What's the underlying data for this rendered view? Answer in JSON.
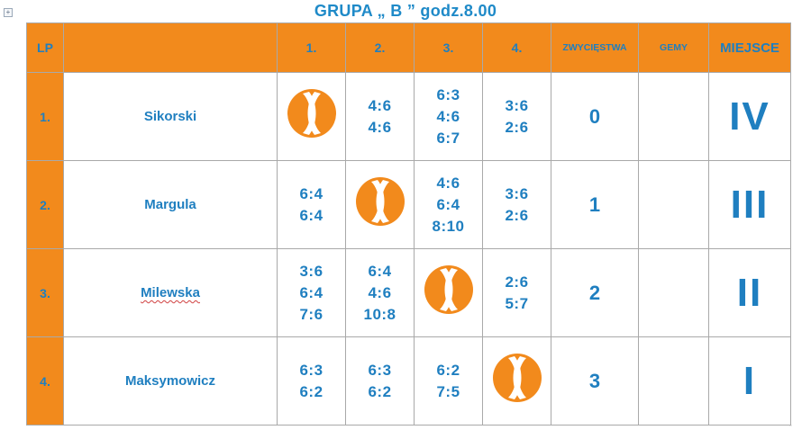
{
  "title": "GRUPA „ B ” godz.8.00",
  "columns": {
    "lp": "LP",
    "name": "",
    "c1": "1.",
    "c2": "2.",
    "c3": "3.",
    "c4": "4.",
    "wins": "ZWYCIĘSTWA",
    "games": "GEMY",
    "place": "MIEJSCE"
  },
  "colors": {
    "header_orange": "#f28a1c",
    "text_blue": "#1f7fc0",
    "ball_orange": "#f28a1c"
  },
  "rows": [
    {
      "lp": "1.",
      "name": "Sikorski",
      "c1": [],
      "c2": [
        "4:6",
        "4:6"
      ],
      "c3": [
        "6:3",
        "4:6",
        "6:7"
      ],
      "c4": [
        "3:6",
        "2:6"
      ],
      "wins": "0",
      "games": "",
      "place": "IV"
    },
    {
      "lp": "2.",
      "name": "Margula",
      "c1": [
        "6:4",
        "6:4"
      ],
      "c2": [],
      "c3": [
        "4:6",
        "6:4",
        "8:10"
      ],
      "c4": [
        "3:6",
        "2:6"
      ],
      "wins": "1",
      "games": "",
      "place": "III"
    },
    {
      "lp": "3.",
      "name": "Milewska",
      "c1": [
        "3:6",
        "6:4",
        "7:6"
      ],
      "c2": [
        "6:4",
        "4:6",
        "10:8"
      ],
      "c3": [],
      "c4": [
        "2:6",
        "5:7"
      ],
      "wins": "2",
      "games": "",
      "place": "II"
    },
    {
      "lp": "4.",
      "name": "Maksymowicz",
      "c1": [
        "6:3",
        "6:2"
      ],
      "c2": [
        "6:3",
        "6:2"
      ],
      "c3": [
        "6:2",
        "7:5"
      ],
      "c4": [],
      "wins": "3",
      "games": "",
      "place": "I"
    }
  ]
}
